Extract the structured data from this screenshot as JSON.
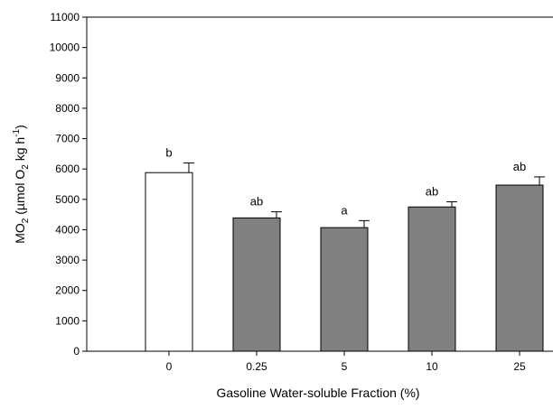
{
  "chart_data": {
    "type": "bar",
    "title": "",
    "categories": [
      "0",
      "0.25",
      "5",
      "10",
      "25"
    ],
    "values": [
      5880,
      4390,
      4070,
      4750,
      5470
    ],
    "error_bars": [
      320,
      200,
      230,
      170,
      270
    ],
    "significance_labels": [
      "b",
      "ab",
      "a",
      "ab",
      "ab"
    ],
    "bar_colors": [
      "#ffffff",
      "#808080",
      "#808080",
      "#808080",
      "#808080"
    ],
    "xlabel": "Gasoline Water-soluble Fraction (%)",
    "ylabel": {
      "base1": "MO",
      "sub1": "2",
      "base2": " (µmol O",
      "sub2": "2",
      "base3": " kg h",
      "sup": "-1",
      "base4": ")"
    },
    "ylim": [
      0,
      11000
    ],
    "yticks": [
      0,
      1000,
      2000,
      3000,
      4000,
      5000,
      6000,
      7000,
      8000,
      9000,
      10000,
      11000
    ],
    "grid": false,
    "legend": "none"
  }
}
